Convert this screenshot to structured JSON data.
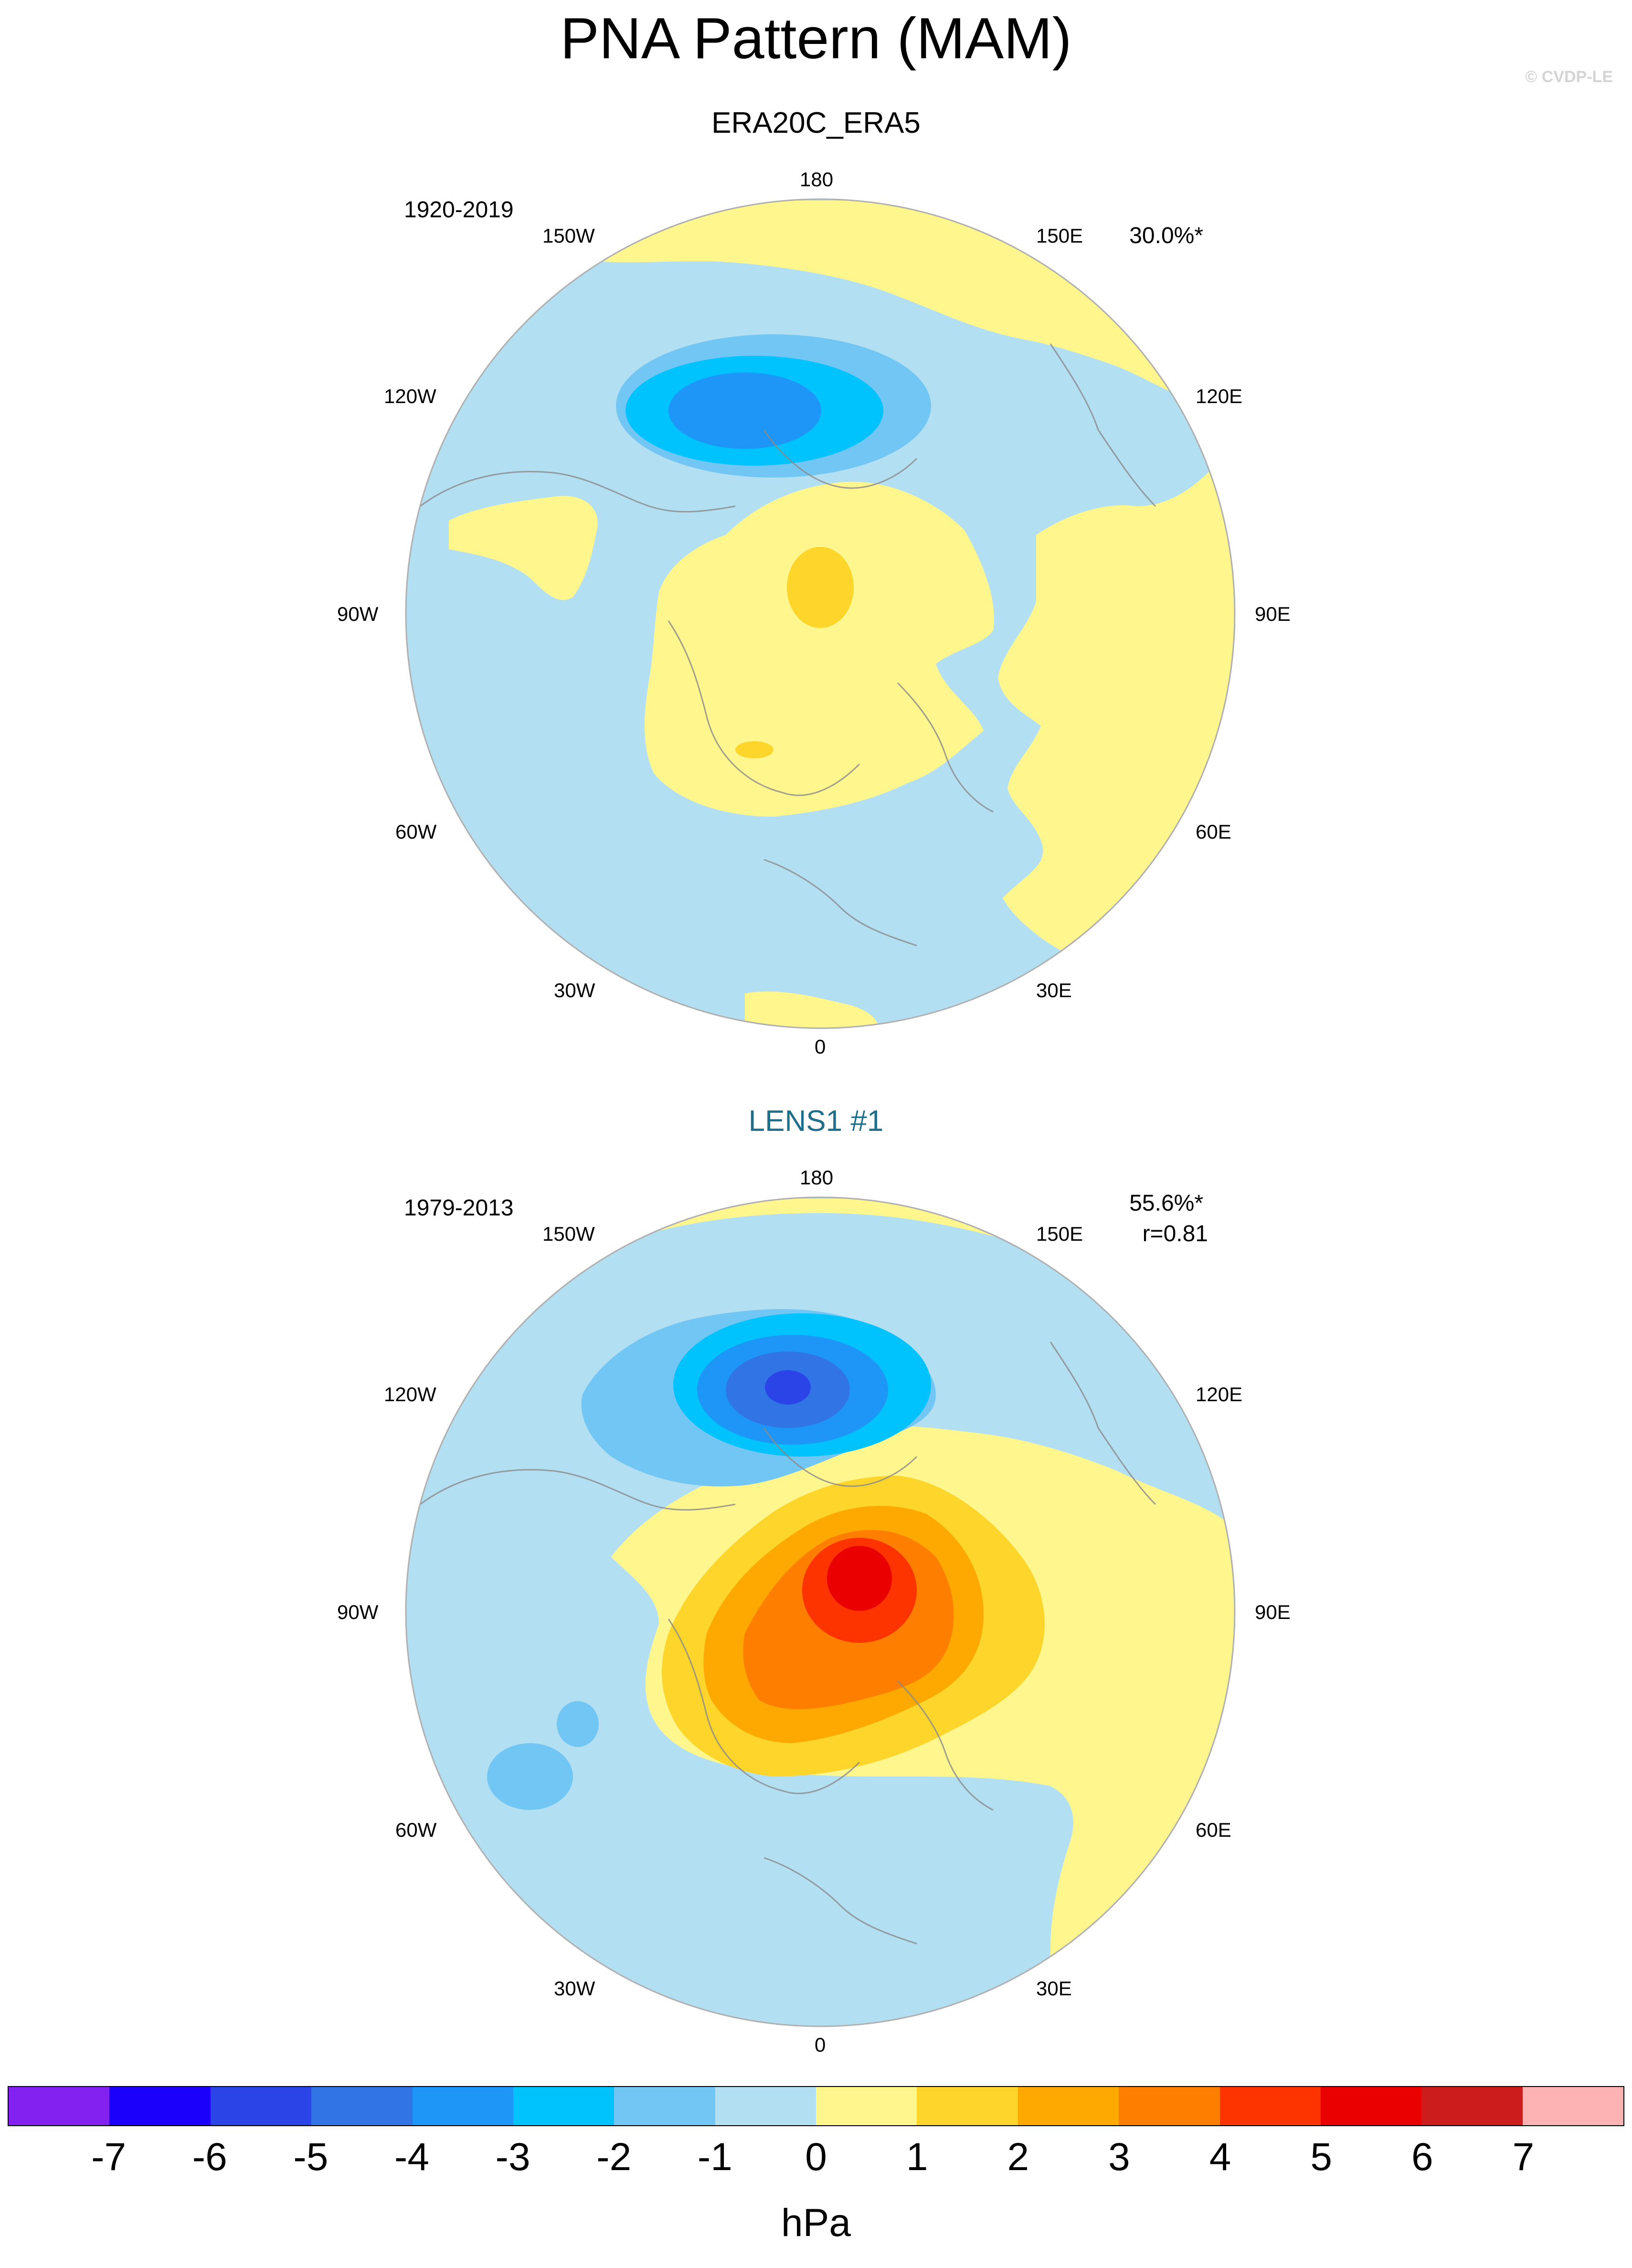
{
  "title": "PNA Pattern (MAM)",
  "copyright": "© CVDP-LE",
  "panels": [
    {
      "title": "ERA20C_ERA5",
      "period": "1920-2019",
      "pct": "30.0%*",
      "corr": "",
      "lon_labels": {
        "n": "180",
        "nw1": "150W",
        "ne1": "150E",
        "nw2": "120W",
        "ne2": "120E",
        "w": "90W",
        "e": "90E",
        "sw2": "60W",
        "se2": "60E",
        "sw1": "30W",
        "se1": "30E",
        "s": "0"
      }
    },
    {
      "title": "LENS1 #1",
      "period": "1979-2013",
      "pct": "55.6%*",
      "corr": "r=0.81",
      "lon_labels": {
        "n": "180",
        "nw1": "150W",
        "ne1": "150E",
        "nw2": "120W",
        "ne2": "120E",
        "w": "90W",
        "e": "90E",
        "sw2": "60W",
        "se2": "60E",
        "sw1": "30W",
        "se1": "30E",
        "s": "0"
      }
    }
  ],
  "colorbar": {
    "unit": "hPa",
    "labels": [
      "-7",
      "-6",
      "-5",
      "-4",
      "-3",
      "-2",
      "-1",
      "0",
      "1",
      "2",
      "3",
      "4",
      "5",
      "6",
      "7"
    ],
    "colors": [
      "#8321f0",
      "#1b00fb",
      "#2a44e8",
      "#3174e6",
      "#1e96f8",
      "#00c2fd",
      "#72c6f3",
      "#b3dff3",
      "#fff68e",
      "#fdd52b",
      "#fea901",
      "#fe7f00",
      "#fe3400",
      "#ea0000",
      "#cc1c1c",
      "#fdb3b3"
    ]
  },
  "map_fields": {
    "panel_1": {
      "background_color": "#b3dff3",
      "positive_color": "#fff68e",
      "contours": [
        {
          "level": -2,
          "color": "#72c6f3"
        },
        {
          "level": -3,
          "color": "#00c2fd"
        },
        {
          "level": -4,
          "color": "#1e96f8"
        },
        {
          "level": 1,
          "color": "#fdd52b"
        }
      ]
    },
    "panel_2": {
      "background_color": "#b3dff3",
      "positive_color": "#fff68e",
      "contours": [
        {
          "level": -2,
          "color": "#72c6f3"
        },
        {
          "level": -3,
          "color": "#00c2fd"
        },
        {
          "level": -4,
          "color": "#1e96f8"
        },
        {
          "level": -5,
          "color": "#3174e6"
        },
        {
          "level": -6,
          "color": "#2a44e8"
        },
        {
          "level": 1,
          "color": "#fdd52b"
        },
        {
          "level": 2,
          "color": "#fea901"
        },
        {
          "level": 3,
          "color": "#fe7f00"
        },
        {
          "level": 4,
          "color": "#fe3400"
        },
        {
          "level": 5,
          "color": "#ea0000"
        }
      ]
    }
  }
}
